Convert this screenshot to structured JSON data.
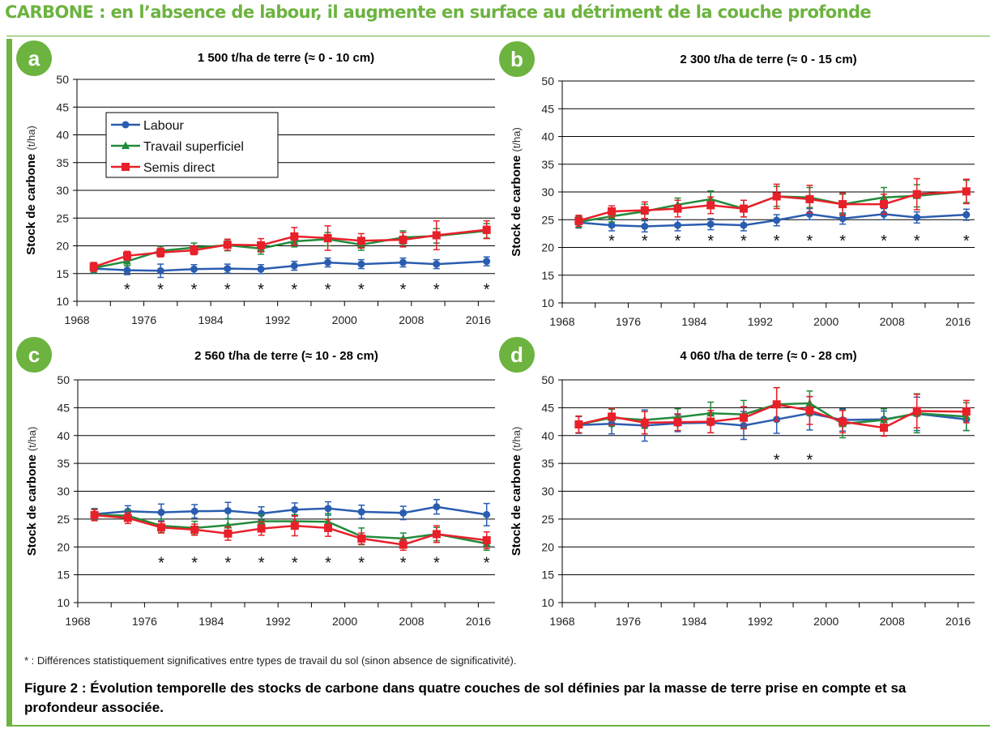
{
  "header": {
    "title": "CARBONE : en l’absence de labour, il augmente en surface au détriment de la couche profonde"
  },
  "colors": {
    "accent": "#6cb33f",
    "labour": "#2a5db0",
    "travail": "#228b3b",
    "semis": "#e8202a"
  },
  "legend_labels": [
    "Labour",
    "Travail superficiel",
    "Semis direct"
  ],
  "footnote": "* : Différences statistiquement significatives entre types de travail du sol (sinon absence de significativité).",
  "caption": "Figure 2  : Évolution temporelle des stocks de carbone dans quatre couches de sol définies par la masse de terre prise en compte et sa profondeur associée.",
  "chart_data": [
    {
      "id": "a",
      "type": "line",
      "title": "1 500 t/ha de terre (≈ 0 - 10 cm)",
      "ylabel": "Stock de carbone",
      "yunit": "(t/ha)",
      "xlim": [
        1968,
        2018
      ],
      "ylim": [
        10,
        50
      ],
      "xticks": [
        1968,
        1976,
        1984,
        1992,
        2000,
        2008,
        2016
      ],
      "yticks": [
        10,
        15,
        20,
        25,
        30,
        35,
        40,
        45,
        50
      ],
      "grid": true,
      "legend": "top-left",
      "x": [
        1970,
        1974,
        1978,
        1982,
        1986,
        1990,
        1994,
        1998,
        2002,
        2007,
        2011,
        2017
      ],
      "series": [
        {
          "name": "Labour",
          "marker": "circle",
          "values": [
            15.9,
            15.6,
            15.5,
            15.8,
            15.9,
            15.8,
            16.4,
            17.0,
            16.7,
            17.0,
            16.7,
            17.2
          ],
          "errors": [
            0.8,
            0.8,
            1.2,
            0.8,
            0.8,
            0.8,
            0.8,
            0.8,
            0.8,
            0.8,
            0.8,
            0.8
          ]
        },
        {
          "name": "Travail superficiel",
          "marker": "triangle",
          "values": [
            16.0,
            17.2,
            19.1,
            19.7,
            20.1,
            19.5,
            20.8,
            21.2,
            20.2,
            21.5,
            21.8,
            22.7
          ],
          "errors": [
            0.8,
            0.8,
            0.8,
            0.8,
            1.0,
            1.0,
            1.0,
            1.2,
            1.0,
            1.2,
            1.3,
            1.3
          ]
        },
        {
          "name": "Semis direct",
          "marker": "square",
          "values": [
            16.2,
            18.2,
            18.8,
            19.2,
            20.2,
            20.1,
            21.7,
            21.4,
            20.9,
            21.1,
            21.9,
            22.9
          ],
          "errors": [
            0.8,
            0.8,
            0.8,
            0.8,
            1.0,
            1.2,
            1.6,
            2.2,
            1.3,
            1.3,
            2.6,
            1.6
          ]
        }
      ],
      "significant_x": [
        1974,
        1978,
        1982,
        1986,
        1990,
        1994,
        1998,
        2002,
        2007,
        2011,
        2017
      ],
      "significant_mark": "*"
    },
    {
      "id": "b",
      "type": "line",
      "title": "2 300 t/ha de terre (≈ 0 - 15 cm)",
      "ylabel": "Stock de carbone",
      "yunit": "(t/ha)",
      "xlim": [
        1968,
        2018
      ],
      "ylim": [
        10,
        50
      ],
      "xticks": [
        1968,
        1976,
        1984,
        1992,
        2000,
        2008,
        2016
      ],
      "yticks": [
        10,
        15,
        20,
        25,
        30,
        35,
        40,
        45,
        50
      ],
      "grid": true,
      "x": [
        1970,
        1974,
        1978,
        1982,
        1986,
        1990,
        1994,
        1998,
        2002,
        2007,
        2011,
        2017
      ],
      "series": [
        {
          "name": "Labour",
          "marker": "circle",
          "values": [
            24.5,
            24.0,
            23.8,
            24.0,
            24.2,
            24.0,
            24.9,
            26.0,
            25.2,
            26.0,
            25.4,
            25.9
          ],
          "errors": [
            1.0,
            1.0,
            1.0,
            1.0,
            1.0,
            1.0,
            1.0,
            1.0,
            1.0,
            1.0,
            1.0,
            1.0
          ]
        },
        {
          "name": "Travail superficiel",
          "marker": "triangle",
          "values": [
            24.6,
            25.6,
            26.5,
            27.7,
            28.7,
            27.0,
            29.2,
            29.0,
            27.8,
            29.0,
            29.3,
            30.1
          ],
          "errors": [
            1.0,
            1.0,
            1.3,
            1.2,
            1.5,
            1.5,
            1.8,
            1.8,
            1.8,
            1.8,
            2.0,
            2.0
          ]
        },
        {
          "name": "Semis direct",
          "marker": "square",
          "values": [
            24.8,
            26.5,
            26.7,
            27.0,
            27.6,
            27.0,
            29.2,
            28.7,
            27.8,
            27.8,
            29.6,
            30.1
          ],
          "errors": [
            1.0,
            1.0,
            1.5,
            1.5,
            1.5,
            1.5,
            2.2,
            2.5,
            2.0,
            1.8,
            2.8,
            2.2
          ]
        }
      ],
      "significant_x": [
        1974,
        1978,
        1982,
        1986,
        1990,
        1994,
        1998,
        2002,
        2007,
        2011,
        2017
      ],
      "significant_mark": "*"
    },
    {
      "id": "c",
      "type": "line",
      "title": "2 560 t/ha de terre (≈ 10 - 28 cm)",
      "ylabel": "Stock de carbone",
      "yunit": "(t/ha)",
      "xlim": [
        1968,
        2018
      ],
      "ylim": [
        10,
        50
      ],
      "xticks": [
        1968,
        1976,
        1984,
        1992,
        2000,
        2008,
        2016
      ],
      "yticks": [
        10,
        15,
        20,
        25,
        30,
        35,
        40,
        45,
        50
      ],
      "grid": true,
      "x": [
        1970,
        1974,
        1978,
        1982,
        1986,
        1990,
        1994,
        1998,
        2002,
        2007,
        2011,
        2017
      ],
      "series": [
        {
          "name": "Labour",
          "marker": "circle",
          "values": [
            25.9,
            26.4,
            26.2,
            26.4,
            26.5,
            26.0,
            26.7,
            26.9,
            26.3,
            26.1,
            27.2,
            25.8
          ],
          "errors": [
            1.0,
            1.0,
            1.5,
            1.2,
            1.5,
            1.2,
            1.2,
            1.2,
            1.2,
            1.2,
            1.3,
            2.0
          ]
        },
        {
          "name": "Travail superficiel",
          "marker": "triangle",
          "values": [
            25.8,
            25.6,
            23.8,
            23.4,
            23.9,
            24.6,
            24.6,
            24.5,
            21.9,
            21.5,
            22.3,
            20.6
          ],
          "errors": [
            1.0,
            1.0,
            1.2,
            1.2,
            1.2,
            1.2,
            1.2,
            1.5,
            1.5,
            1.0,
            1.2,
            1.2
          ]
        },
        {
          "name": "Semis direct",
          "marker": "square",
          "values": [
            25.7,
            25.2,
            23.5,
            23.1,
            22.4,
            23.3,
            23.8,
            23.4,
            21.5,
            20.4,
            22.3,
            21.2
          ],
          "errors": [
            1.0,
            1.0,
            1.0,
            1.0,
            1.2,
            1.2,
            1.8,
            1.5,
            1.0,
            1.0,
            1.5,
            1.5
          ]
        }
      ],
      "significant_x": [
        1978,
        1982,
        1986,
        1990,
        1994,
        1998,
        2002,
        2007,
        2011,
        2017
      ],
      "significant_mark": "*"
    },
    {
      "id": "d",
      "type": "line",
      "title": "4 060 t/ha de terre (≈ 0 - 28 cm)",
      "ylabel": "Stock de carbone",
      "yunit": "(t/ha)",
      "xlim": [
        1968,
        2018
      ],
      "ylim": [
        10,
        50
      ],
      "xticks": [
        1968,
        1976,
        1984,
        1992,
        2000,
        2008,
        2016
      ],
      "yticks": [
        10,
        15,
        20,
        25,
        30,
        35,
        40,
        45,
        50
      ],
      "grid": true,
      "x": [
        1970,
        1974,
        1978,
        1982,
        1986,
        1990,
        1994,
        1998,
        2002,
        2007,
        2011,
        2017
      ],
      "series": [
        {
          "name": "Labour",
          "marker": "circle",
          "values": [
            41.9,
            42.1,
            41.8,
            42.2,
            42.3,
            41.8,
            42.9,
            44.0,
            42.8,
            42.9,
            43.9,
            42.9
          ],
          "errors": [
            1.5,
            1.8,
            2.8,
            1.5,
            1.8,
            2.5,
            2.5,
            3.0,
            2.0,
            1.5,
            3.0,
            2.0
          ]
        },
        {
          "name": "Travail superficiel",
          "marker": "triangle",
          "values": [
            42.0,
            43.2,
            42.8,
            43.3,
            44.0,
            43.8,
            45.6,
            45.8,
            42.1,
            42.8,
            44.0,
            43.4
          ],
          "errors": [
            1.5,
            1.5,
            1.5,
            1.5,
            2.0,
            2.5,
            3.0,
            2.2,
            2.5,
            2.0,
            3.5,
            2.5
          ]
        },
        {
          "name": "Semis direct",
          "marker": "square",
          "values": [
            42.0,
            43.4,
            42.3,
            42.4,
            42.5,
            43.2,
            45.6,
            44.5,
            42.5,
            41.4,
            44.4,
            44.3
          ],
          "errors": [
            1.5,
            1.5,
            2.0,
            1.5,
            2.0,
            2.0,
            3.0,
            2.5,
            2.0,
            1.5,
            3.0,
            2.0
          ]
        }
      ],
      "significant_x": [
        1994,
        1998
      ],
      "significant_mark": "*"
    }
  ]
}
